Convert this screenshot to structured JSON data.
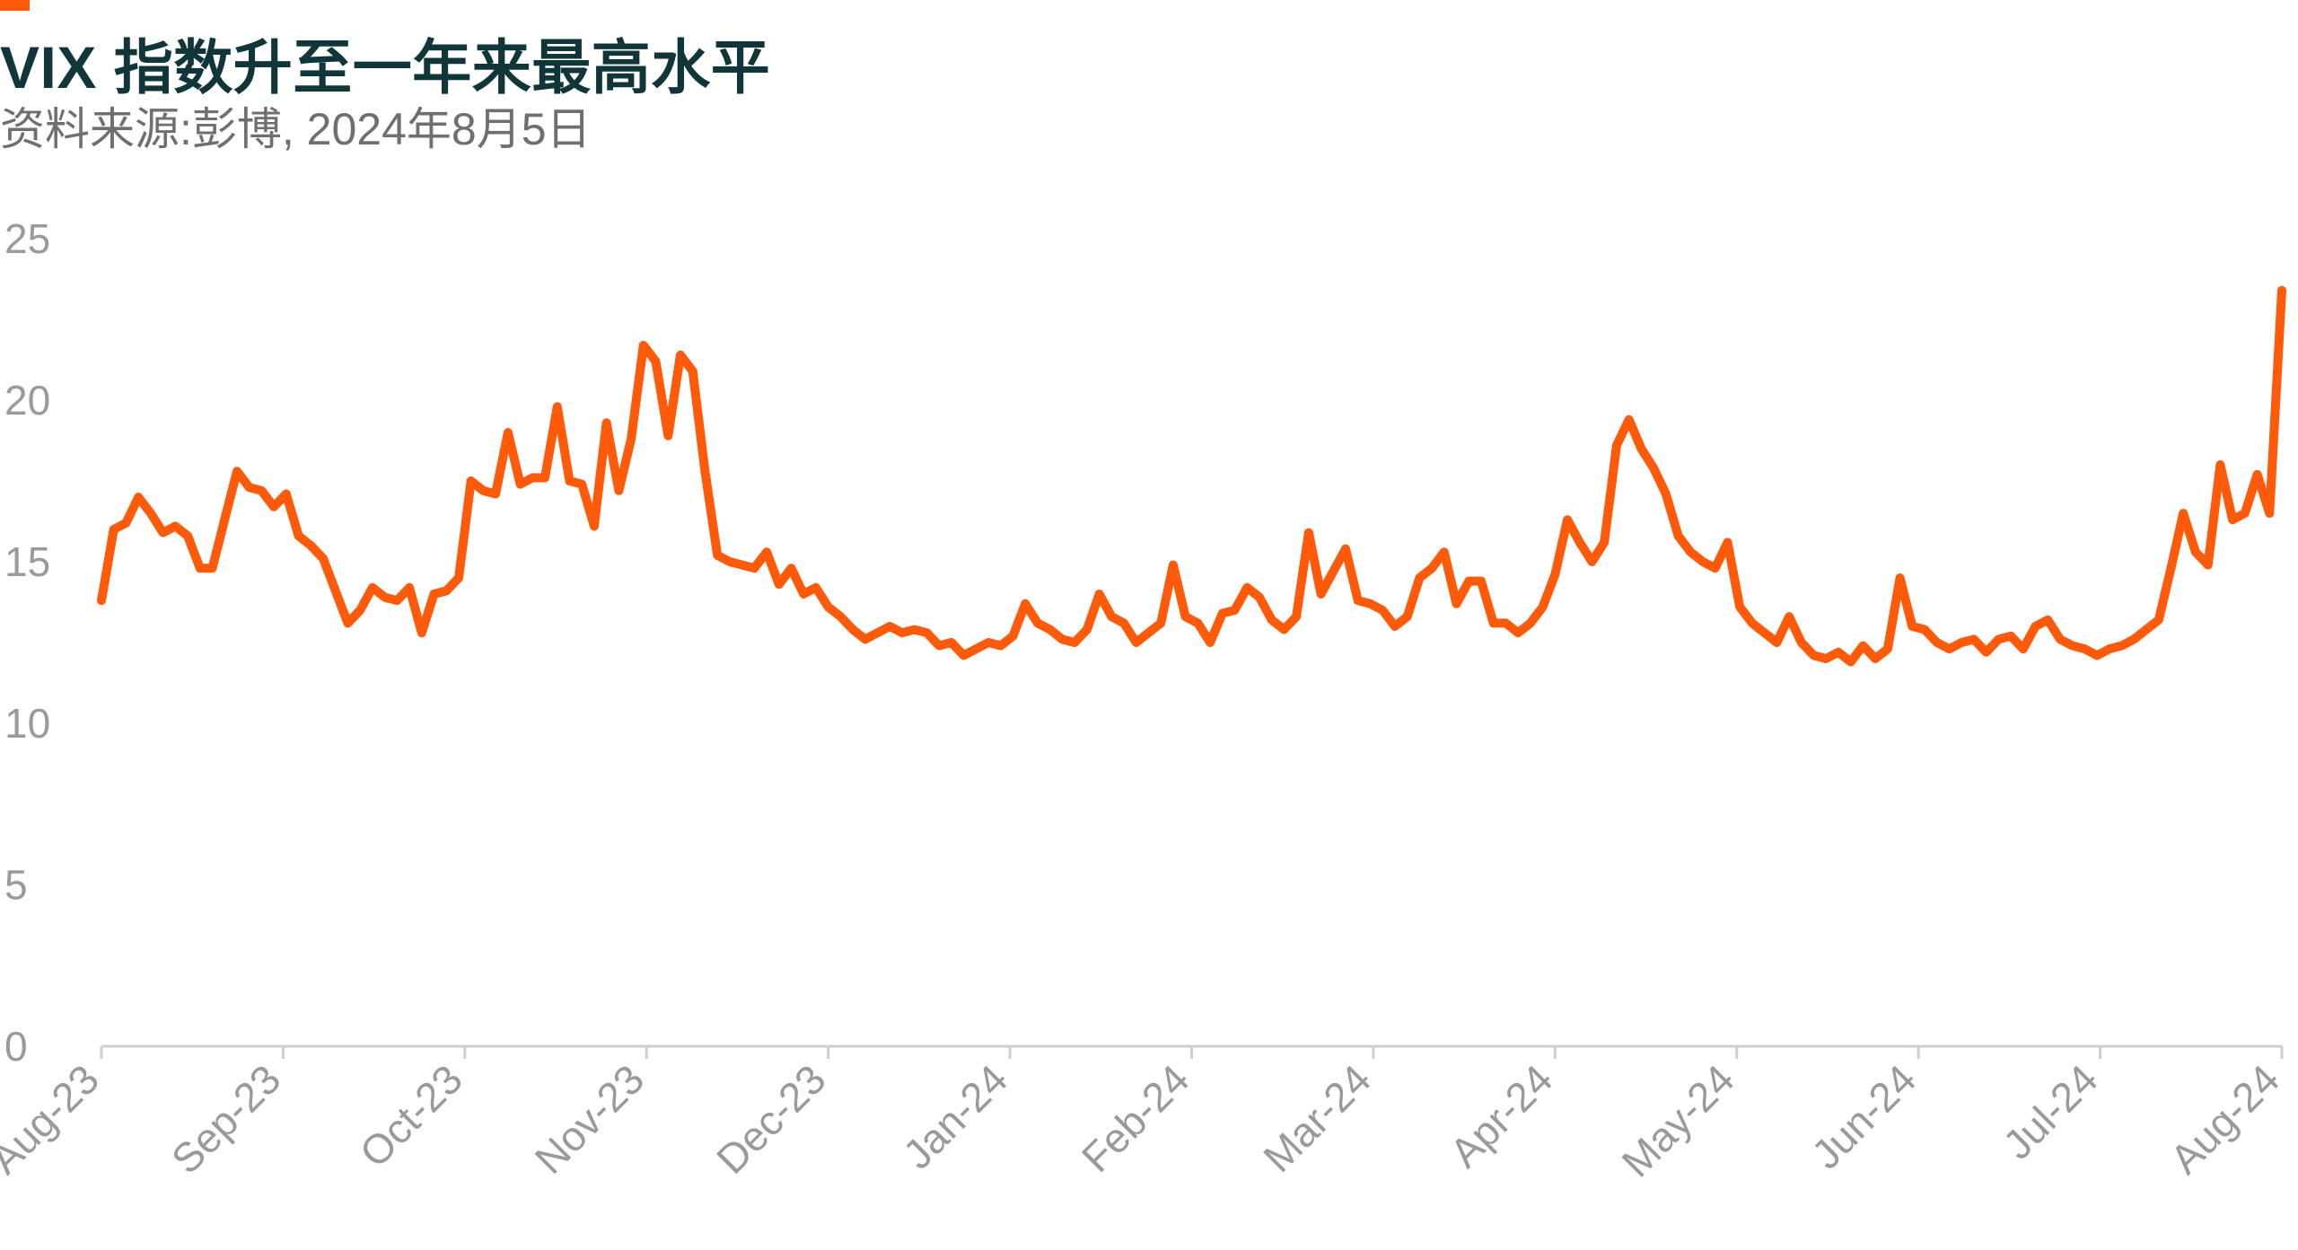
{
  "chart_data": {
    "type": "line",
    "title": "VIX 指数升至一年来最高水平",
    "subtitle": "资料来源:彭博, 2024年8月5日",
    "colors": {
      "line": "#ff5a0a",
      "accent": "#ff5a0a",
      "title": "#10363a",
      "axis": "#cfcfcf",
      "tick_text": "#9a9a9a"
    },
    "ylim": [
      0,
      25
    ],
    "yticks": [
      0,
      5,
      10,
      15,
      20,
      25
    ],
    "ytick_labels": [
      "0",
      "5",
      "10",
      "15",
      "20",
      "25"
    ],
    "xticks": [
      "Aug-23",
      "Sep-23",
      "Oct-23",
      "Nov-23",
      "Dec-23",
      "Jan-24",
      "Feb-24",
      "Mar-24",
      "Apr-24",
      "May-24",
      "Jun-24",
      "Jul-24",
      "Aug-24"
    ],
    "grid": false,
    "series": [
      {
        "values": [
          13.8,
          16.0,
          16.2,
          17.0,
          16.5,
          15.9,
          16.1,
          15.8,
          14.8,
          14.8,
          16.3,
          17.8,
          17.3,
          17.2,
          16.7,
          17.1,
          15.8,
          15.5,
          15.1,
          14.1,
          13.1,
          13.5,
          14.2,
          13.9,
          13.8,
          14.2,
          12.8,
          14.0,
          14.1,
          14.5,
          17.5,
          17.2,
          17.1,
          19.0,
          17.4,
          17.6,
          17.6,
          19.8,
          17.5,
          17.4,
          16.1,
          19.3,
          17.2,
          18.8,
          21.7,
          21.2,
          18.9,
          21.4,
          20.9,
          17.8,
          15.2,
          15.0,
          14.9,
          14.8,
          15.3,
          14.3,
          14.8,
          14.0,
          14.2,
          13.6,
          13.3,
          12.9,
          12.6,
          12.8,
          13.0,
          12.8,
          12.9,
          12.8,
          12.4,
          12.5,
          12.1,
          12.3,
          12.5,
          12.4,
          12.7,
          13.7,
          13.1,
          12.9,
          12.6,
          12.5,
          12.9,
          14.0,
          13.3,
          13.1,
          12.5,
          12.8,
          13.1,
          14.9,
          13.3,
          13.1,
          12.5,
          13.4,
          13.5,
          14.2,
          13.9,
          13.2,
          12.9,
          13.3,
          15.9,
          14.0,
          14.7,
          15.4,
          13.8,
          13.7,
          13.5,
          13.0,
          13.3,
          14.5,
          14.8,
          15.3,
          13.7,
          14.4,
          14.4,
          13.1,
          13.1,
          12.8,
          13.1,
          13.6,
          14.6,
          16.3,
          15.6,
          15.0,
          15.6,
          18.6,
          19.4,
          18.5,
          17.9,
          17.1,
          15.8,
          15.3,
          15.0,
          14.8,
          15.6,
          13.6,
          13.1,
          12.8,
          12.5,
          13.3,
          12.5,
          12.1,
          12.0,
          12.2,
          11.9,
          12.4,
          12.0,
          12.3,
          14.5,
          13.0,
          12.9,
          12.5,
          12.3,
          12.5,
          12.6,
          12.2,
          12.6,
          12.7,
          12.3,
          13.0,
          13.2,
          12.6,
          12.4,
          12.3,
          12.1,
          12.3,
          12.4,
          12.6,
          12.9,
          13.2,
          14.8,
          16.5,
          15.3,
          14.9,
          18.0,
          16.3,
          16.5,
          17.7,
          16.5,
          23.4
        ]
      }
    ]
  }
}
